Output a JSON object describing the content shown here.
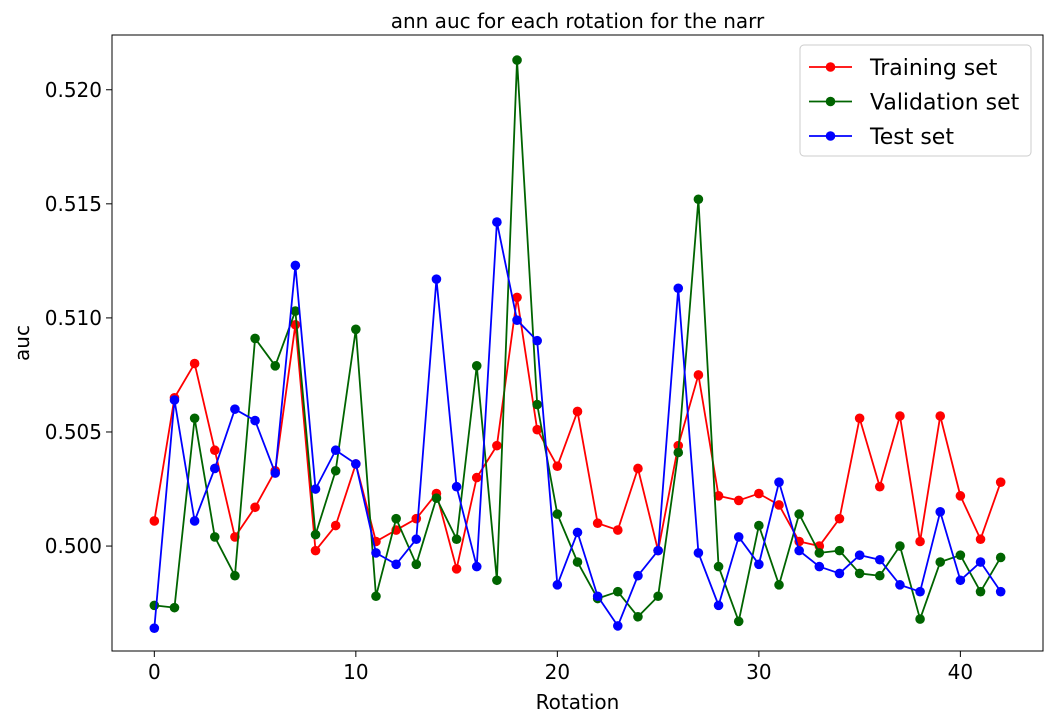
{
  "chart_data": {
    "type": "line",
    "title": "ann auc for each rotation for the narr",
    "xlabel": "Rotation",
    "ylabel": "auc",
    "xlim": [
      -2.1,
      44.1
    ],
    "ylim": [
      0.4954,
      0.5224
    ],
    "xticks": [
      0,
      10,
      20,
      30,
      40
    ],
    "yticks": [
      0.5,
      0.505,
      0.51,
      0.515,
      0.52
    ],
    "ytick_labels": [
      "0.500",
      "0.505",
      "0.510",
      "0.515",
      "0.520"
    ],
    "grid": false,
    "legend_position": "top-right",
    "x": [
      0,
      1,
      2,
      3,
      4,
      5,
      6,
      7,
      8,
      9,
      10,
      11,
      12,
      13,
      14,
      15,
      16,
      17,
      18,
      19,
      20,
      21,
      22,
      23,
      24,
      25,
      26,
      27,
      28,
      29,
      30,
      31,
      32,
      33,
      34,
      35,
      36,
      37,
      38,
      39,
      40,
      41,
      42
    ],
    "series": [
      {
        "name": "Training set",
        "color": "#ff0000",
        "values": [
          0.5011,
          0.5065,
          0.508,
          0.5042,
          0.5004,
          0.5017,
          0.5033,
          0.5097,
          0.4998,
          0.5009,
          0.5036,
          0.5002,
          0.5007,
          0.5012,
          0.5023,
          0.499,
          0.503,
          0.5044,
          0.5109,
          0.5051,
          0.5035,
          0.5059,
          0.501,
          0.5007,
          0.5034,
          0.4998,
          0.5044,
          0.5075,
          0.5022,
          0.502,
          0.5023,
          0.5018,
          0.5002,
          0.5,
          0.5012,
          0.5056,
          0.5026,
          0.5057,
          0.5002,
          0.5057,
          0.5022,
          0.5003,
          0.5028
        ]
      },
      {
        "name": "Validation set",
        "color": "#006400",
        "values": [
          0.4974,
          0.4973,
          0.5056,
          0.5004,
          0.4987,
          0.5091,
          0.5079,
          0.5103,
          0.5005,
          0.5033,
          0.5095,
          0.4978,
          0.5012,
          0.4992,
          0.5021,
          0.5003,
          0.5079,
          0.4985,
          0.5213,
          0.5062,
          0.5014,
          0.4993,
          0.4977,
          0.498,
          0.4969,
          0.4978,
          0.5041,
          0.5152,
          0.4991,
          0.4967,
          0.5009,
          0.4983,
          0.5014,
          0.4997,
          0.4998,
          0.4988,
          0.4987,
          0.5,
          0.4968,
          0.4993,
          0.4996,
          0.498,
          0.4995
        ]
      },
      {
        "name": "Test set",
        "color": "#0000ff",
        "values": [
          0.4964,
          0.5064,
          0.5011,
          0.5034,
          0.506,
          0.5055,
          0.5032,
          0.5123,
          0.5025,
          0.5042,
          0.5036,
          0.4997,
          0.4992,
          0.5003,
          0.5117,
          0.5026,
          0.4991,
          0.5142,
          0.5099,
          0.509,
          0.4983,
          0.5006,
          0.4978,
          0.4965,
          0.4987,
          0.4998,
          0.5113,
          0.4997,
          0.4974,
          0.5004,
          0.4992,
          0.5028,
          0.4998,
          0.4991,
          0.4988,
          0.4996,
          0.4994,
          0.4983,
          0.498,
          0.5015,
          0.4985,
          0.4993,
          0.498
        ]
      }
    ]
  }
}
